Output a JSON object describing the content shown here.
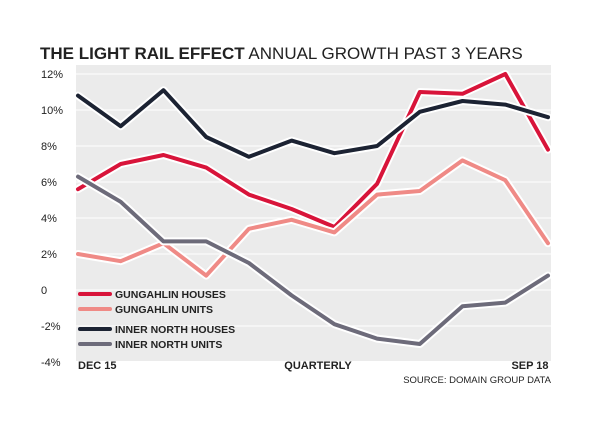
{
  "title": {
    "bold": "THE LIGHT RAIL EFFECT",
    "rest": "ANNUAL GROWTH PAST 3 YEARS"
  },
  "source": "SOURCE: DOMAIN GROUP DATA",
  "chart_data": {
    "type": "line",
    "title": "THE LIGHT RAIL EFFECT ANNUAL GROWTH PAST 3 YEARS",
    "xlabel": "QUARTERLY",
    "ylabel": "",
    "ylim": [
      -4,
      12
    ],
    "y_ticks": [
      -4,
      -2,
      0,
      2,
      4,
      6,
      8,
      10,
      12
    ],
    "y_tick_labels": [
      "-4%",
      "-2%",
      "0",
      "2%",
      "4%",
      "6%",
      "8%",
      "10%",
      "12%"
    ],
    "x_tick_labels": [
      "DEC 15",
      "QUARTERLY",
      "SEP 18"
    ],
    "x": [
      1,
      2,
      3,
      4,
      5,
      6,
      7,
      8,
      9,
      10,
      11,
      12
    ],
    "grid": true,
    "legend_position": "bottom-left",
    "series": [
      {
        "name": "GUNGAHLIN HOUSES",
        "color": "#d8143a",
        "values": [
          5.6,
          7.0,
          7.5,
          6.8,
          5.3,
          4.5,
          3.5,
          5.9,
          11.0,
          10.9,
          12.0,
          7.8
        ]
      },
      {
        "name": "GUNGAHLIN UNITS",
        "color": "#ef8a86",
        "values": [
          2.0,
          1.6,
          2.6,
          0.8,
          3.4,
          3.9,
          3.2,
          5.3,
          5.5,
          7.2,
          6.1,
          2.6
        ]
      },
      {
        "name": "INNER NORTH HOUSES",
        "color": "#1c2333",
        "values": [
          10.8,
          9.1,
          11.1,
          8.5,
          7.4,
          8.3,
          7.6,
          8.0,
          9.9,
          10.5,
          10.3,
          9.6
        ]
      },
      {
        "name": "INNER NORTH UNITS",
        "color": "#6d6b7a",
        "values": [
          6.3,
          4.9,
          2.7,
          2.7,
          1.5,
          -0.3,
          -1.9,
          -2.7,
          -3.0,
          -0.9,
          -0.7,
          0.8
        ]
      }
    ]
  }
}
